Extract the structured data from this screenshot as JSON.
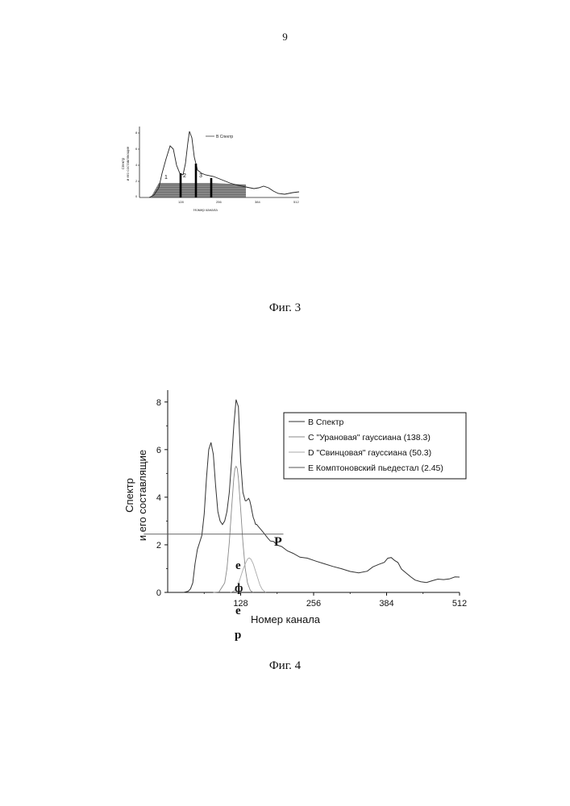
{
  "page_number": "9",
  "fig3": {
    "caption": "Фиг. 3",
    "ylabel_lines": [
      "Спектр",
      "и его составляющие"
    ],
    "xlabel": "Номер канала",
    "legend": [
      "B Спектр"
    ],
    "region_labels": [
      "1",
      "2",
      "3"
    ],
    "x_ticks": [
      "128",
      "256",
      "384",
      "512"
    ]
  },
  "fig4": {
    "caption": "Фиг. 4",
    "stray_letters": [
      "P",
      "e",
      "ф",
      "e",
      "p"
    ]
  },
  "chart_data": {
    "type": "line",
    "ylabel_lines": [
      "Спектр",
      "и его составлящие"
    ],
    "xlabel": "Номер канала",
    "xlim": [
      0,
      512
    ],
    "ylim": [
      0,
      8.5
    ],
    "x_ticks": [
      128,
      256,
      384,
      512
    ],
    "x_tick_labels": [
      "128",
      "256",
      "384",
      "512"
    ],
    "y_ticks": [
      0,
      2,
      4,
      6,
      8
    ],
    "y_tick_labels": [
      "0",
      "2",
      "4",
      "6",
      "8"
    ],
    "legend_position": "top-right",
    "series": [
      {
        "name": "B Спектр",
        "color": "#333333",
        "x": [
          28,
          36,
          40,
          44,
          48,
          52,
          56,
          60,
          64,
          68,
          72,
          76,
          80,
          84,
          88,
          92,
          96,
          100,
          104,
          108,
          112,
          116,
          120,
          124,
          128,
          132,
          136,
          138,
          140,
          142,
          144,
          146,
          148,
          150,
          152,
          154,
          156,
          160,
          164,
          168,
          172,
          176,
          180,
          186,
          192,
          200,
          210,
          220,
          232,
          245,
          260,
          275,
          290,
          305,
          320,
          335,
          350,
          360,
          370,
          380,
          386,
          392,
          398,
          404,
          410,
          418,
          426,
          434,
          444,
          454,
          464,
          474,
          484,
          494,
          504,
          512
        ],
        "y": [
          0,
          0.05,
          0.15,
          0.4,
          1.2,
          1.8,
          2.1,
          2.4,
          3.3,
          4.8,
          6.0,
          6.3,
          5.8,
          4.5,
          3.4,
          3.0,
          2.85,
          3.0,
          3.4,
          4.2,
          5.5,
          7.0,
          8.1,
          7.8,
          5.5,
          4.2,
          3.85,
          3.85,
          3.9,
          3.95,
          3.85,
          3.65,
          3.4,
          3.15,
          3.0,
          2.9,
          2.82,
          2.7,
          2.6,
          2.5,
          2.4,
          2.3,
          2.2,
          2.1,
          2.0,
          1.9,
          1.78,
          1.65,
          1.52,
          1.4,
          1.28,
          1.18,
          1.08,
          1.0,
          0.9,
          0.85,
          0.93,
          1.05,
          1.15,
          1.3,
          1.42,
          1.45,
          1.38,
          1.22,
          1.0,
          0.8,
          0.62,
          0.5,
          0.42,
          0.45,
          0.5,
          0.52,
          0.55,
          0.6,
          0.62,
          0.65
        ]
      },
      {
        "name": "C \"Урановая\" гауссиана (138.3)",
        "color": "#888888",
        "x": [
          80,
          90,
          100,
          104,
          108,
          112,
          116,
          118,
          120,
          122,
          124,
          128,
          132,
          136,
          140,
          145,
          150
        ],
        "y": [
          0,
          0.02,
          0.4,
          1.0,
          2.1,
          3.5,
          4.8,
          5.2,
          5.3,
          5.2,
          4.8,
          3.5,
          2.1,
          1.0,
          0.4,
          0.08,
          0
        ]
      },
      {
        "name": "D \"Свинцовая\" гауссиана (50.3)",
        "color": "#aaaaaa",
        "x": [
          110,
          116,
          120,
          124,
          128,
          132,
          136,
          140,
          143,
          146,
          150,
          154,
          158,
          162,
          166,
          172
        ],
        "y": [
          0,
          0.05,
          0.15,
          0.35,
          0.65,
          0.95,
          1.2,
          1.4,
          1.45,
          1.4,
          1.2,
          0.9,
          0.6,
          0.3,
          0.12,
          0
        ]
      },
      {
        "name": "E Комптоновский пьедестал (2.45)",
        "color": "#555555",
        "x": [
          -42,
          203
        ],
        "y": [
          2.45,
          2.45
        ]
      }
    ]
  }
}
